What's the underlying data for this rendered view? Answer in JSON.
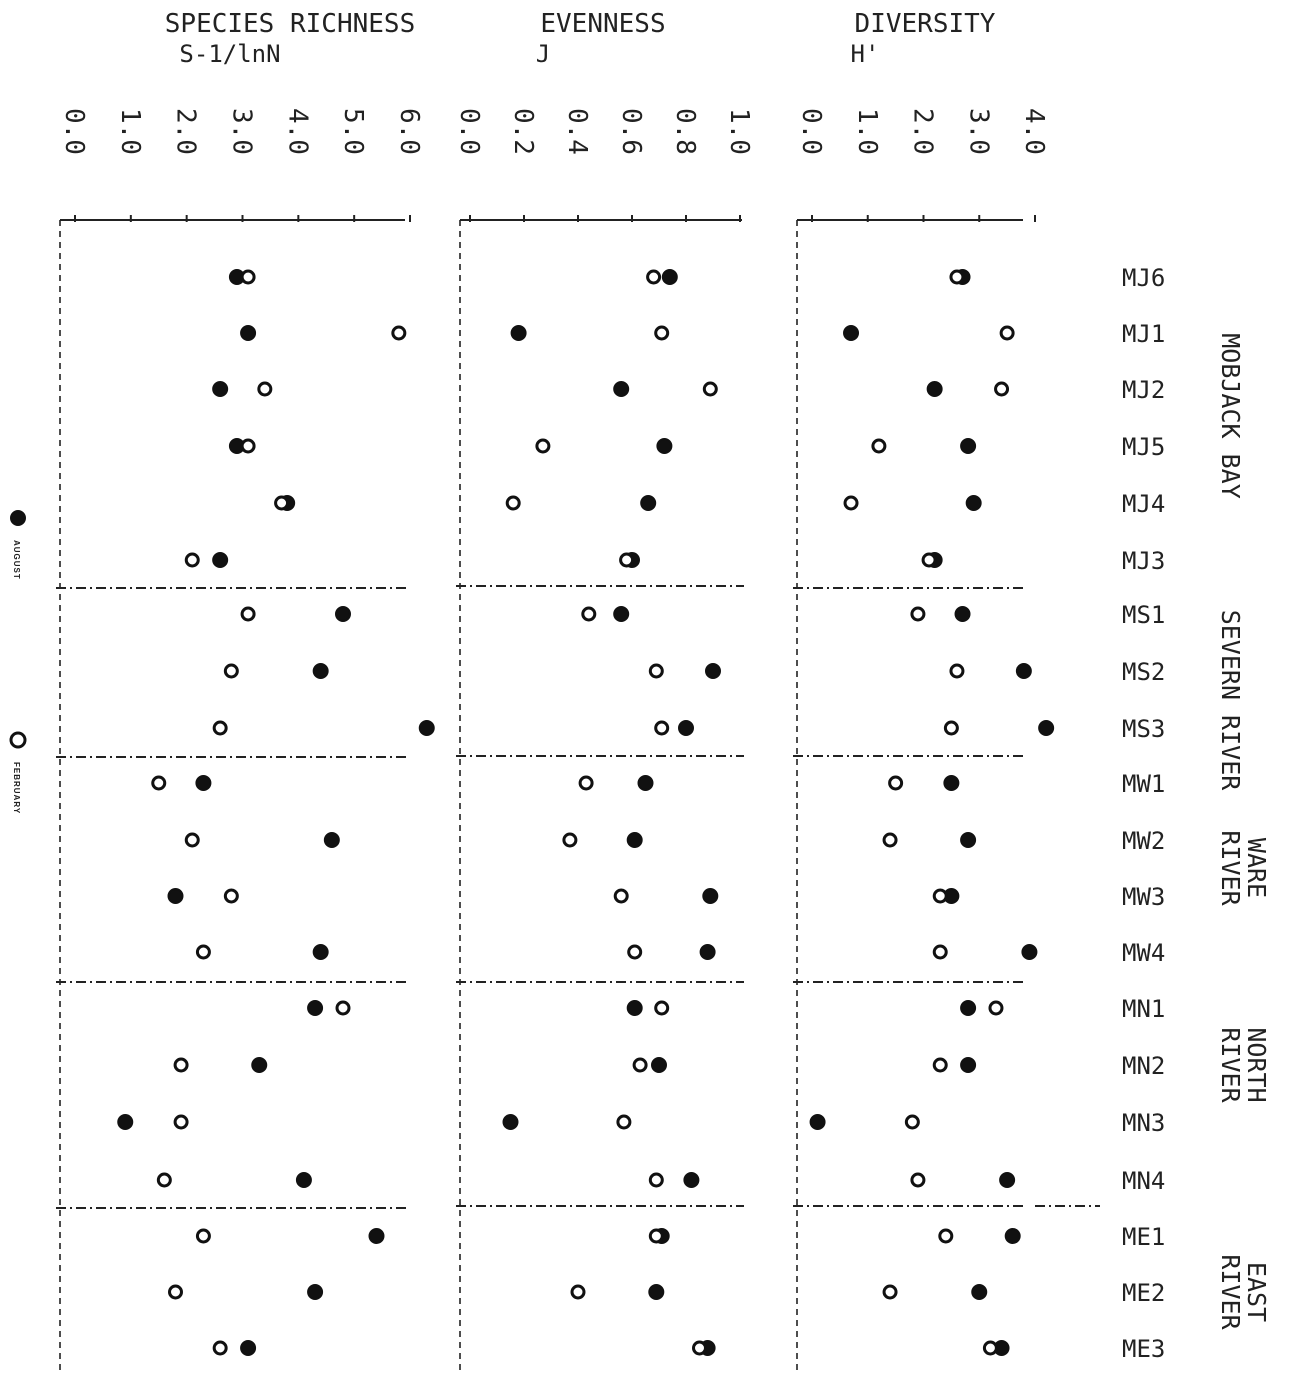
{
  "chart_data": {
    "type": "scatter",
    "panels": [
      {
        "key": "richness",
        "title": "SPECIES RICHNESS",
        "subtitle": "S-1/lnN",
        "ticks": [
          "0.0",
          "1.0",
          "2.0",
          "3.0",
          "4.0",
          "5.0",
          "6.0"
        ],
        "range": [
          0,
          6
        ]
      },
      {
        "key": "evenness",
        "title": "EVENNESS",
        "subtitle": "J",
        "ticks": [
          "0.0",
          "0.2",
          "0.4",
          "0.6",
          "0.8",
          "1.0"
        ],
        "range": [
          0,
          1
        ]
      },
      {
        "key": "diversity",
        "title": "DIVERSITY",
        "subtitle": "H'",
        "ticks": [
          "0.0",
          "1.0",
          "2.0",
          "3.0",
          "4.0"
        ],
        "range": [
          0,
          4
        ]
      }
    ],
    "sites": [
      "MJ6",
      "MJ1",
      "MJ2",
      "MJ5",
      "MJ4",
      "MJ3",
      "MS1",
      "MS2",
      "MS3",
      "MW1",
      "MW2",
      "MW3",
      "MW4",
      "MN1",
      "MN2",
      "MN3",
      "MN4",
      "ME1",
      "ME2",
      "ME3"
    ],
    "groups": [
      {
        "name": "MOBJACK BAY",
        "sites": [
          "MJ6",
          "MJ1",
          "MJ2",
          "MJ5",
          "MJ4",
          "MJ3"
        ]
      },
      {
        "name": "SEVERN RIVER",
        "sites": [
          "MS1",
          "MS2",
          "MS3"
        ]
      },
      {
        "name": "WARE RIVER",
        "sites": [
          "MW1",
          "MW2",
          "MW3",
          "MW4"
        ]
      },
      {
        "name": "NORTH RIVER",
        "sites": [
          "MN1",
          "MN2",
          "MN3",
          "MN4"
        ]
      },
      {
        "name": "EAST RIVER",
        "sites": [
          "ME1",
          "ME2",
          "ME3"
        ]
      }
    ],
    "series": [
      {
        "name": "AUGUST",
        "marker": "filled",
        "richness": [
          2.9,
          3.1,
          2.6,
          2.9,
          3.8,
          2.6,
          4.8,
          4.4,
          6.3,
          2.3,
          4.6,
          1.8,
          4.4,
          4.3,
          3.3,
          0.9,
          4.1,
          5.4,
          4.3,
          3.1
        ],
        "evenness": [
          0.74,
          0.18,
          0.56,
          0.72,
          0.66,
          0.6,
          0.56,
          0.9,
          0.8,
          0.65,
          0.61,
          0.89,
          0.88,
          0.61,
          0.7,
          0.15,
          0.82,
          0.71,
          0.69,
          0.88
        ],
        "diversity": [
          2.7,
          0.7,
          2.2,
          2.8,
          2.9,
          2.2,
          2.7,
          3.8,
          4.2,
          2.5,
          2.8,
          2.5,
          3.9,
          2.8,
          2.8,
          0.1,
          3.5,
          3.6,
          3.0,
          3.4
        ]
      },
      {
        "name": "FEBRUARY",
        "marker": "open",
        "richness": [
          3.1,
          5.8,
          3.4,
          3.1,
          3.7,
          2.1,
          3.1,
          2.8,
          2.6,
          1.5,
          2.1,
          2.8,
          2.3,
          4.8,
          1.9,
          1.9,
          1.6,
          2.3,
          1.8,
          2.6
        ],
        "evenness": [
          0.68,
          0.71,
          0.89,
          0.27,
          0.16,
          0.58,
          0.44,
          0.69,
          0.71,
          0.43,
          0.37,
          0.56,
          0.61,
          0.71,
          0.63,
          0.57,
          0.69,
          0.69,
          0.4,
          0.85
        ],
        "diversity": [
          2.6,
          3.5,
          3.4,
          1.2,
          0.7,
          2.1,
          1.9,
          2.6,
          2.5,
          1.5,
          1.4,
          2.3,
          2.3,
          3.3,
          2.3,
          1.8,
          1.9,
          2.4,
          1.4,
          3.2
        ]
      }
    ],
    "legend": [
      {
        "label": "AUGUST",
        "marker": "filled"
      },
      {
        "label": "FEBRUARY",
        "marker": "open"
      }
    ],
    "legend_position": "left",
    "grid": false
  }
}
